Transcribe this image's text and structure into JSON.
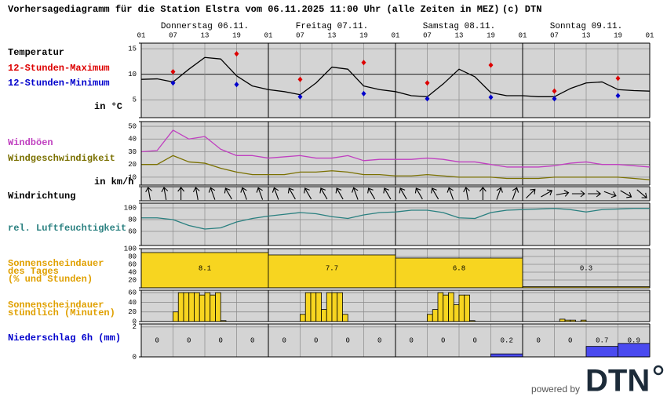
{
  "title": "Vorhersagediagramm für die Station Elstra vom 06.11.2025 11:00 Uhr (alle Zeiten in MEZ)",
  "copyright": "(c) DTN",
  "days": [
    "Donnerstag 06.11.",
    "Freitag 07.11.",
    "Samstag 08.11.",
    "Sonntag 09.11."
  ],
  "hour_labels": [
    "01",
    "07",
    "13",
    "19",
    "01",
    "07",
    "13",
    "19",
    "01",
    "07",
    "13",
    "19",
    "01",
    "07",
    "13",
    "19",
    "01"
  ],
  "footer": {
    "powered_by": "powered by",
    "logo": "DTN"
  },
  "chart_data": [
    {
      "type": "line",
      "title": "Temperatur",
      "unit_label": "in °C",
      "ylim": [
        1.5,
        16.1
      ],
      "yticks": [
        5,
        10,
        15
      ],
      "grid": true,
      "x": [
        0,
        3,
        6,
        9,
        12,
        15,
        18,
        21,
        24,
        27,
        30,
        33,
        36,
        39,
        42,
        45,
        48,
        51,
        54,
        57,
        60,
        63,
        66,
        69,
        72,
        75,
        78,
        81,
        84,
        87,
        90,
        93,
        96
      ],
      "series": [
        {
          "color": "#000000",
          "values": [
            9,
            9.1,
            8.5,
            11,
            13.3,
            13,
            9.7,
            7.7,
            7,
            6.6,
            6,
            8.3,
            11.4,
            11,
            7.7,
            7,
            6.6,
            5.8,
            5.6,
            8.1,
            11,
            9.5,
            6.4,
            5.8,
            5.8,
            5.6,
            5.6,
            7.2,
            8.3,
            8.5,
            7,
            6.8,
            6.7
          ]
        },
        {
          "name": "12-Stunden-Maximum",
          "color": "#dd0000",
          "marker": "diamond",
          "x": [
            6,
            18,
            30,
            42,
            54,
            66,
            78,
            90
          ],
          "values": [
            10.5,
            14,
            9,
            12.3,
            8.3,
            11.8,
            6.7,
            9.2
          ]
        },
        {
          "name": "12-Stunden-Minimum",
          "color": "#0000cc",
          "marker": "diamond",
          "x": [
            6,
            18,
            30,
            42,
            54,
            66,
            78,
            90
          ],
          "values": [
            8.3,
            8,
            5.6,
            6.2,
            5.2,
            5.5,
            5.2,
            5.8
          ]
        }
      ]
    },
    {
      "type": "line",
      "unit_label": "in km/h",
      "ylim": [
        3.75,
        53.75
      ],
      "yticks": [
        10,
        20,
        30,
        40,
        50
      ],
      "grid": true,
      "x": [
        0,
        3,
        6,
        9,
        12,
        15,
        18,
        21,
        24,
        27,
        30,
        33,
        36,
        39,
        42,
        45,
        48,
        51,
        54,
        57,
        60,
        63,
        66,
        69,
        72,
        75,
        78,
        81,
        84,
        87,
        90,
        93,
        96
      ],
      "series": [
        {
          "name": "Windböen",
          "color": "#c040c0",
          "values": [
            30,
            31,
            47,
            40,
            42,
            32,
            27,
            27,
            25,
            26,
            27,
            25,
            25,
            27,
            23,
            24,
            24,
            24,
            25,
            24,
            22,
            22,
            20,
            18,
            18,
            18,
            19,
            21,
            22,
            20,
            20,
            19,
            18
          ]
        },
        {
          "name": "Windgeschwindigkeit",
          "color": "#7a7000",
          "values": [
            20,
            20,
            27,
            22,
            21,
            17,
            14,
            12,
            12,
            12,
            14,
            14,
            15,
            14,
            12,
            12,
            11,
            11,
            12,
            11,
            10,
            10,
            10,
            9,
            9,
            9,
            10,
            10,
            10,
            10,
            10,
            9,
            8
          ]
        }
      ]
    },
    {
      "type": "arrows",
      "title": "Windrichtung",
      "x": [
        1.5,
        4.5,
        7.5,
        10.5,
        13.5,
        16.5,
        19.5,
        22.5,
        25.5,
        28.5,
        31.5,
        34.5,
        37.5,
        40.5,
        43.5,
        46.5,
        49.5,
        52.5,
        55.5,
        58.5,
        61.5,
        64.5,
        67.5,
        70.5,
        73.5,
        76.5,
        79.5,
        82.5,
        85.5,
        88.5,
        91.5,
        94.5
      ],
      "values": [
        170,
        170,
        180,
        170,
        160,
        150,
        160,
        160,
        160,
        150,
        150,
        150,
        150,
        160,
        150,
        150,
        150,
        150,
        150,
        160,
        170,
        180,
        200,
        200,
        225,
        240,
        260,
        270,
        270,
        290,
        300,
        310
      ]
    },
    {
      "type": "line",
      "ylim": [
        36,
        108
      ],
      "yticks": [
        60,
        80,
        100
      ],
      "grid": true,
      "x": [
        0,
        3,
        6,
        9,
        12,
        15,
        18,
        21,
        24,
        27,
        30,
        33,
        36,
        39,
        42,
        45,
        48,
        51,
        54,
        57,
        60,
        63,
        66,
        69,
        72,
        75,
        78,
        81,
        84,
        87,
        90,
        93,
        96
      ],
      "series": [
        {
          "name": "rel. Luftfeuchtigkeit",
          "color": "#2a8080",
          "values": [
            83,
            83,
            80,
            70,
            64,
            66,
            76,
            82,
            86,
            89,
            92,
            90,
            85,
            82,
            88,
            92,
            93,
            96,
            96,
            92,
            83,
            82,
            92,
            96,
            97,
            98,
            99,
            97,
            93,
            97,
            98,
            99,
            99
          ]
        }
      ]
    },
    {
      "type": "histogram",
      "title": [
        "Sonnenscheindauer",
        "des Tages",
        "(% und Stunden)"
      ],
      "ylim": [
        0,
        100
      ],
      "yticks": [
        20,
        40,
        60,
        80,
        100
      ],
      "grid": true,
      "color": "#f7d520",
      "bins": [
        0,
        24,
        48,
        72,
        96
      ],
      "values": [
        90,
        84,
        76,
        3
      ],
      "hours": [
        8.1,
        7.7,
        6.8,
        0.3
      ]
    },
    {
      "type": "bar",
      "title": [
        "Sonnenscheindauer",
        "stündlich (Minuten)"
      ],
      "ylim": [
        0,
        65
      ],
      "yticks": [
        0,
        20,
        40,
        60
      ],
      "grid": true,
      "color": "#f7d520",
      "x": [
        6,
        7,
        8,
        9,
        10,
        11,
        12,
        13,
        14,
        15,
        30,
        31,
        32,
        33,
        34,
        35,
        36,
        37,
        38,
        54,
        55,
        56,
        57,
        58,
        59,
        60,
        61,
        62,
        79,
        80,
        81,
        83
      ],
      "values": [
        20,
        60,
        60,
        60,
        60,
        55,
        60,
        55,
        60,
        2,
        15,
        60,
        60,
        60,
        25,
        60,
        60,
        60,
        15,
        15,
        25,
        60,
        55,
        60,
        35,
        55,
        55,
        2,
        5,
        3,
        3,
        3
      ]
    },
    {
      "type": "histogram",
      "title": "Niederschlag 6h (mm)",
      "print_values": true,
      "ylim": [
        0,
        2.2
      ],
      "yticks": [
        0,
        2
      ],
      "grid": true,
      "color": "#4a4af0",
      "bins": [
        0,
        6,
        12,
        18,
        24,
        30,
        36,
        42,
        48,
        54,
        60,
        66,
        72,
        78,
        84,
        90,
        96
      ],
      "values": [
        0,
        0,
        0,
        0,
        0,
        0,
        0,
        0,
        0,
        0,
        0,
        0.2,
        0,
        0,
        0.7,
        0.9
      ]
    }
  ]
}
